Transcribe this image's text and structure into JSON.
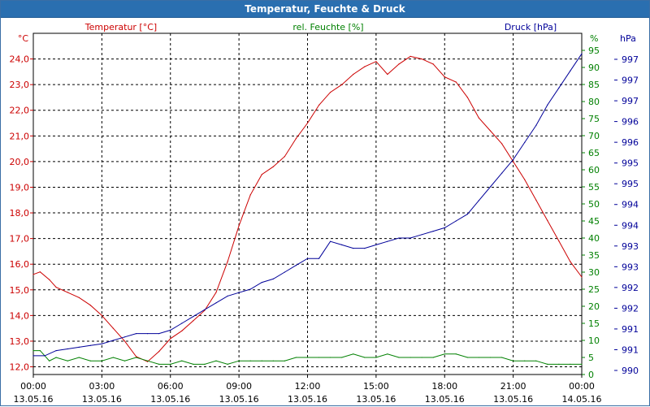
{
  "window": {
    "title": "Temperatur, Feuchte & Druck"
  },
  "chart_data": {
    "type": "line",
    "title": "Temperatur, Feuchte & Druck",
    "grid": true,
    "x_labels": [
      {
        "time": "00:00",
        "date": "13.05.16"
      },
      {
        "time": "03:00",
        "date": "13.05.16"
      },
      {
        "time": "06:00",
        "date": "13.05.16"
      },
      {
        "time": "09:00",
        "date": "13.05.16"
      },
      {
        "time": "12:00",
        "date": "13.05.16"
      },
      {
        "time": "15:00",
        "date": "13.05.16"
      },
      {
        "time": "18:00",
        "date": "13.05.16"
      },
      {
        "time": "21:00",
        "date": "13.05.16"
      },
      {
        "time": "00:00",
        "date": "14.05.16"
      }
    ],
    "x_range_hours": [
      0,
      24
    ],
    "axes": {
      "temperature": {
        "title": "Temperatur [°C]",
        "unit": "°C",
        "color": "#cc0000",
        "ylim": [
          11.7,
          25.0
        ],
        "ticks": [
          "12,0",
          "13,0",
          "14,0",
          "15,0",
          "16,0",
          "17,0",
          "18,0",
          "19,0",
          "20,0",
          "21,0",
          "22,0",
          "23,0",
          "24,0"
        ],
        "tick_values": [
          12,
          13,
          14,
          15,
          16,
          17,
          18,
          19,
          20,
          21,
          22,
          23,
          24
        ]
      },
      "humidity": {
        "title": "rel. Feuchte [%]",
        "unit": "%",
        "color": "#008000",
        "ylim": [
          0,
          100
        ],
        "ticks": [
          "0",
          "5",
          "10",
          "15",
          "20",
          "25",
          "30",
          "35",
          "40",
          "45",
          "50",
          "55",
          "60",
          "65",
          "70",
          "75",
          "80",
          "85",
          "90",
          "95"
        ],
        "tick_values": [
          0,
          5,
          10,
          15,
          20,
          25,
          30,
          35,
          40,
          45,
          50,
          55,
          60,
          65,
          70,
          75,
          80,
          85,
          90,
          95
        ]
      },
      "pressure": {
        "title": "Druck [hPa]",
        "unit": "hPa",
        "color": "#000099",
        "ticks": [
          "990",
          "991",
          "991",
          "992",
          "992",
          "993",
          "993",
          "994",
          "994",
          "995",
          "995",
          "996",
          "996",
          "997",
          "997",
          "997"
        ]
      }
    },
    "series": [
      {
        "name": "Temperatur [°C]",
        "axis": "temperature",
        "color": "#cc0000",
        "x": [
          0,
          0.3,
          0.7,
          1,
          1.5,
          2,
          2.5,
          3,
          3.5,
          4,
          4.5,
          5,
          5.5,
          6,
          6.5,
          7,
          7.5,
          8,
          8.5,
          9,
          9.5,
          10,
          10.5,
          11,
          11.5,
          12,
          12.5,
          13,
          13.5,
          14,
          14.5,
          15,
          15.5,
          16,
          16.5,
          17,
          17.5,
          18,
          18.5,
          19,
          19.5,
          20,
          20.5,
          21,
          21.5,
          22,
          22.5,
          23,
          23.5,
          24
        ],
        "values": [
          15.6,
          15.7,
          15.4,
          15.1,
          14.9,
          14.7,
          14.4,
          14.0,
          13.5,
          13.0,
          12.4,
          12.2,
          12.6,
          13.1,
          13.4,
          13.8,
          14.2,
          14.9,
          16.1,
          17.5,
          18.7,
          19.5,
          19.8,
          20.2,
          20.9,
          21.5,
          22.2,
          22.7,
          23.0,
          23.4,
          23.7,
          23.9,
          23.4,
          23.8,
          24.1,
          24.0,
          23.8,
          23.3,
          23.1,
          22.5,
          21.7,
          21.2,
          20.7,
          20.0,
          19.3,
          18.5,
          17.7,
          16.9,
          16.1,
          15.5
        ]
      },
      {
        "name": "rel. Feuchte [%]",
        "axis": "humidity",
        "color": "#008000",
        "x": [
          0,
          0.3,
          0.7,
          1,
          1.5,
          2,
          2.5,
          3,
          3.5,
          4,
          4.5,
          5,
          5.5,
          6,
          6.5,
          7,
          7.5,
          8,
          8.5,
          9,
          9.5,
          10,
          10.5,
          11,
          11.5,
          12,
          12.5,
          13,
          13.5,
          14,
          14.5,
          15,
          15.5,
          16,
          16.5,
          17,
          17.5,
          18,
          18.5,
          19,
          19.5,
          20,
          20.5,
          21,
          21.5,
          22,
          22.5,
          23,
          23.5,
          24
        ],
        "values": [
          7,
          7,
          4,
          5,
          4,
          5,
          4,
          4,
          5,
          4,
          5,
          4,
          3,
          3,
          4,
          3,
          3,
          4,
          3,
          4,
          4,
          4,
          4,
          4,
          5,
          5,
          5,
          5,
          5,
          6,
          5,
          5,
          6,
          5,
          5,
          5,
          5,
          6,
          6,
          5,
          5,
          5,
          5,
          4,
          4,
          4,
          3,
          3,
          3,
          3
        ]
      },
      {
        "name": "Druck [hPa]",
        "axis": "humidity",
        "color": "#000099",
        "x": [
          0,
          0.5,
          1,
          1.5,
          2,
          2.5,
          3,
          3.5,
          4,
          4.5,
          5,
          5.5,
          6,
          6.5,
          7,
          7.5,
          8,
          8.5,
          9,
          9.5,
          10,
          10.5,
          11,
          11.5,
          12,
          12.5,
          13,
          13.5,
          14,
          14.5,
          15,
          15.5,
          16,
          16.5,
          17,
          17.5,
          18,
          18.5,
          19,
          19.5,
          20,
          20.5,
          21,
          21.5,
          22,
          22.5,
          23,
          23.5,
          24
        ],
        "values": [
          5.5,
          5.5,
          7,
          7.5,
          8,
          8.5,
          9,
          10,
          11,
          12,
          12,
          12,
          13,
          15,
          17,
          19,
          21,
          23,
          24,
          25,
          27,
          28,
          30,
          32,
          34,
          34,
          39,
          38,
          37,
          37,
          38,
          39,
          40,
          40,
          41,
          42,
          43,
          45,
          47,
          51,
          55,
          59,
          63,
          68,
          73,
          79,
          84,
          89,
          94
        ]
      }
    ]
  }
}
